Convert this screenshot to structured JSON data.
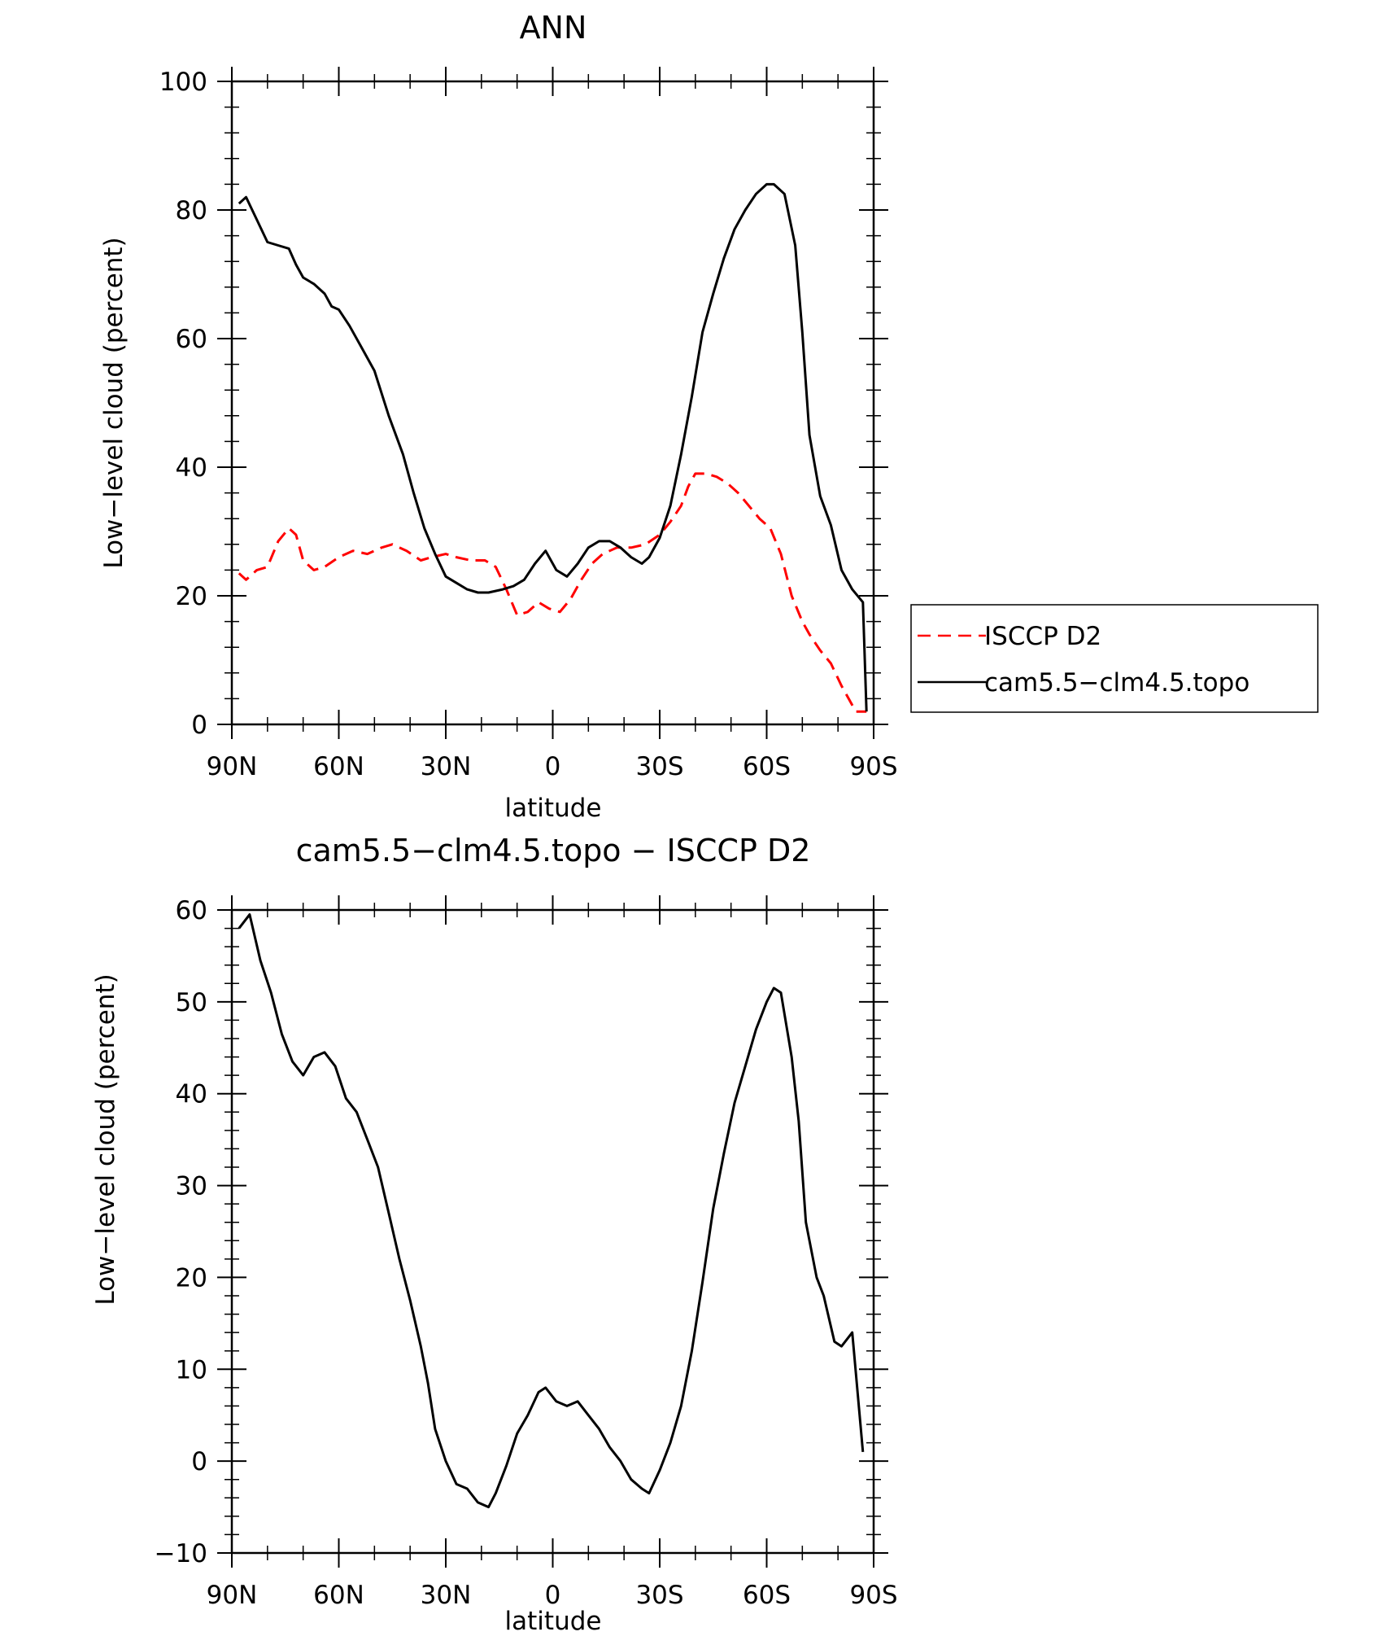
{
  "chart_data": [
    {
      "type": "line",
      "title": "ANN",
      "xlabel": "latitude",
      "ylabel": "Low−level cloud (percent)",
      "x_ticks": [
        "90N",
        "60N",
        "30N",
        "0",
        "30S",
        "60S",
        "90S"
      ],
      "x_tick_values": [
        -90,
        -60,
        -30,
        0,
        30,
        60,
        90
      ],
      "xlim": [
        -90,
        90
      ],
      "ylim": [
        0,
        100
      ],
      "y_ticks": [
        "0",
        "20",
        "40",
        "60",
        "80",
        "100"
      ],
      "y_tick_values": [
        0,
        20,
        40,
        60,
        80,
        100
      ],
      "legend": {
        "placement": "right",
        "entries": [
          "ISCCP D2",
          "cam5.5−clm4.5.topo"
        ]
      },
      "series": [
        {
          "name": "ISCCP D2",
          "color": "#ff0000",
          "dash": "dashed",
          "x": [
            -88,
            -86,
            -83,
            -80,
            -77,
            -74,
            -72,
            -70,
            -67,
            -64,
            -60,
            -56,
            -52,
            -48,
            -45,
            -41,
            -37,
            -34,
            -30,
            -27,
            -23,
            -19,
            -16,
            -13,
            -10,
            -7,
            -4,
            -1,
            2,
            5,
            8,
            11,
            14,
            18,
            22,
            26,
            30,
            33,
            36,
            38,
            40,
            43,
            46,
            49,
            52,
            55,
            58,
            61,
            64,
            67,
            70,
            72,
            75,
            78,
            81,
            83,
            85,
            87,
            88
          ],
          "y": [
            23.5,
            22.5,
            24,
            24.5,
            28.5,
            30.5,
            29.5,
            25.5,
            24,
            24.5,
            26,
            27,
            26.5,
            27.5,
            28,
            27,
            25.5,
            26,
            26.5,
            26,
            25.5,
            25.5,
            24.5,
            21,
            17,
            17.5,
            19,
            18,
            17.5,
            19.5,
            22.5,
            25,
            26.5,
            27.5,
            27.5,
            28,
            29.5,
            31.5,
            34,
            37,
            39,
            39,
            38.5,
            37.5,
            36,
            34,
            32,
            30.5,
            26.5,
            20,
            16,
            14,
            11.5,
            9.5,
            6,
            4,
            2,
            2,
            2
          ]
        },
        {
          "name": "cam5.5−clm4.5.topo",
          "color": "#000000",
          "dash": "solid",
          "x": [
            -88,
            -86,
            -83,
            -80,
            -77,
            -74,
            -72,
            -70,
            -67,
            -64,
            -62,
            -60,
            -57,
            -54,
            -50,
            -46,
            -42,
            -39,
            -36,
            -33,
            -30,
            -27,
            -24,
            -21,
            -18,
            -14,
            -11,
            -8,
            -5,
            -2,
            1,
            4,
            7,
            10,
            13,
            16,
            19,
            22,
            25,
            27,
            30,
            33,
            36,
            39,
            42,
            45,
            48,
            51,
            54,
            57,
            60,
            62,
            65,
            68,
            70,
            72,
            75,
            78,
            81,
            84,
            87,
            88
          ],
          "y": [
            81,
            82,
            78.5,
            75,
            74.5,
            74,
            71.5,
            69.5,
            68.5,
            67,
            65,
            64.5,
            62,
            59,
            55,
            48,
            42,
            36,
            30.5,
            26.5,
            23,
            22,
            21,
            20.5,
            20.5,
            21,
            21.5,
            22.5,
            25,
            27,
            24,
            23,
            25,
            27.5,
            28.5,
            28.5,
            27.5,
            26,
            25,
            26,
            29,
            34,
            42,
            51,
            61,
            67,
            72.5,
            77,
            80,
            82.5,
            84,
            84,
            82.5,
            74.5,
            61,
            45,
            35.5,
            31,
            24,
            21,
            19,
            2
          ]
        }
      ]
    },
    {
      "type": "line",
      "title": "cam5.5−clm4.5.topo − ISCCP D2",
      "xlabel": "latitude",
      "ylabel": "Low−level cloud (percent)",
      "x_ticks": [
        "90N",
        "60N",
        "30N",
        "0",
        "30S",
        "60S",
        "90S"
      ],
      "x_tick_values": [
        -90,
        -60,
        -30,
        0,
        30,
        60,
        90
      ],
      "xlim": [
        -90,
        90
      ],
      "ylim": [
        -10,
        60
      ],
      "y_ticks": [
        "−10",
        "0",
        "10",
        "20",
        "30",
        "40",
        "50",
        "60"
      ],
      "y_tick_values": [
        -10,
        0,
        10,
        20,
        30,
        40,
        50,
        60
      ],
      "series": [
        {
          "color": "#000000",
          "dash": "solid",
          "x": [
            -88,
            -85,
            -82,
            -79,
            -76,
            -73,
            -70,
            -67,
            -64,
            -61,
            -58,
            -55,
            -52,
            -49,
            -46,
            -43,
            -40,
            -37,
            -35,
            -33,
            -30,
            -27,
            -24,
            -21,
            -18,
            -16,
            -13,
            -10,
            -7,
            -4,
            -2,
            1,
            4,
            7,
            10,
            13,
            16,
            19,
            22,
            25,
            27,
            30,
            33,
            36,
            39,
            42,
            45,
            48,
            51,
            54,
            57,
            60,
            62,
            64,
            67,
            69,
            71,
            74,
            76,
            79,
            81,
            84,
            87
          ],
          "y": [
            58,
            59.5,
            54.5,
            51,
            46.5,
            43.5,
            42,
            44,
            44.5,
            43,
            39.5,
            38,
            35,
            32,
            27,
            22,
            17.5,
            12.5,
            8.5,
            3.5,
            0,
            -2.5,
            -3,
            -4.5,
            -5,
            -3.5,
            -0.5,
            3,
            5,
            7.5,
            8,
            6.5,
            6,
            6.5,
            5,
            3.5,
            1.5,
            0,
            -2,
            -3,
            -3.5,
            -1,
            2,
            6,
            12,
            19.5,
            27.5,
            33.5,
            39,
            43,
            47,
            50,
            51.5,
            51,
            44,
            37,
            26,
            20,
            18,
            13,
            12.5,
            14,
            1
          ]
        }
      ]
    }
  ]
}
